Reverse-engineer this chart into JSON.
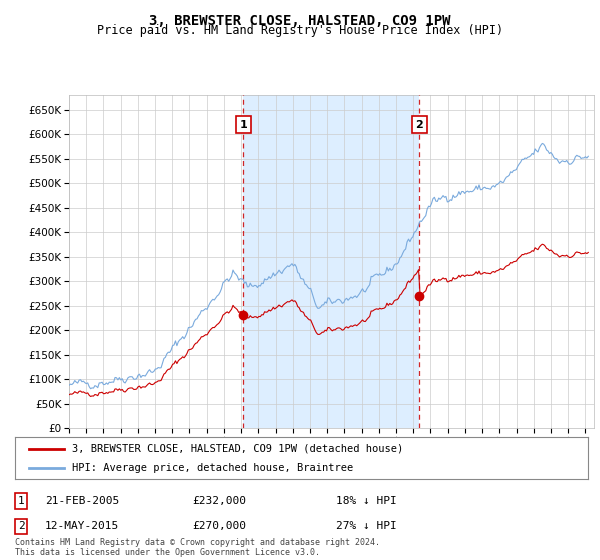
{
  "title": "3, BREWSTER CLOSE, HALSTEAD, CO9 1PW",
  "subtitle": "Price paid vs. HM Land Registry's House Price Index (HPI)",
  "hpi_color": "#7aaadd",
  "sale_color": "#cc0000",
  "vline_color": "#cc0000",
  "shade_color": "#ddeeff",
  "grid_color": "#cccccc",
  "ylim": [
    0,
    680000
  ],
  "yticks": [
    0,
    50000,
    100000,
    150000,
    200000,
    250000,
    300000,
    350000,
    400000,
    450000,
    500000,
    550000,
    600000,
    650000
  ],
  "sale1_year": 2005.13,
  "sale1_price": 232000,
  "sale1_label": "1",
  "sale1_date": "21-FEB-2005",
  "sale1_pct": "18% ↓ HPI",
  "sale2_year": 2015.36,
  "sale2_price": 270000,
  "sale2_label": "2",
  "sale2_date": "12-MAY-2015",
  "sale2_pct": "27% ↓ HPI",
  "legend_line1": "3, BREWSTER CLOSE, HALSTEAD, CO9 1PW (detached house)",
  "legend_line2": "HPI: Average price, detached house, Braintree",
  "footer": "Contains HM Land Registry data © Crown copyright and database right 2024.\nThis data is licensed under the Open Government Licence v3.0.",
  "xlim_start": 1995,
  "xlim_end": 2025.5
}
